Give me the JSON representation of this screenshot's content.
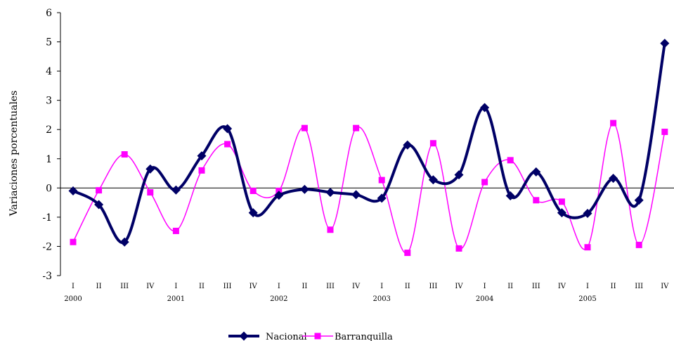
{
  "chart_data": {
    "type": "line",
    "title": "",
    "xlabel": "",
    "ylabel": "Variaciones porcentuales",
    "ylim": [
      -3,
      6
    ],
    "yticks": [
      -3,
      -2,
      -1,
      0,
      1,
      2,
      3,
      4,
      5,
      6
    ],
    "categories": [
      "I",
      "II",
      "III",
      "IV",
      "I",
      "II",
      "III",
      "IV",
      "I",
      "II",
      "III",
      "IV",
      "I",
      "II",
      "III",
      "IV",
      "I",
      "II",
      "III",
      "IV",
      "I",
      "II",
      "III",
      "IV"
    ],
    "years": [
      {
        "label": "2000",
        "start_index": 0
      },
      {
        "label": "2001",
        "start_index": 4
      },
      {
        "label": "2002",
        "start_index": 8
      },
      {
        "label": "2003",
        "start_index": 12
      },
      {
        "label": "2004",
        "start_index": 16
      },
      {
        "label": "2005",
        "start_index": 20
      }
    ],
    "series": [
      {
        "name": "Nacional",
        "color": "#000066",
        "marker": "diamond",
        "values": [
          -0.1,
          -0.57,
          -1.85,
          0.65,
          -0.07,
          1.1,
          2.03,
          -0.85,
          -0.25,
          -0.05,
          -0.15,
          -0.23,
          -0.35,
          1.47,
          0.28,
          0.45,
          2.75,
          -0.27,
          0.55,
          -0.85,
          -0.87,
          0.33,
          -0.42,
          4.95
        ]
      },
      {
        "name": "Barranquilla",
        "color": "#ff00ff",
        "marker": "square",
        "values": [
          -1.85,
          -0.08,
          1.15,
          -0.15,
          -1.47,
          0.6,
          1.5,
          -0.1,
          -0.1,
          2.05,
          -1.43,
          2.05,
          0.27,
          -2.22,
          1.53,
          -2.07,
          0.2,
          0.95,
          -0.42,
          -0.47,
          -2.03,
          2.22,
          -1.95,
          1.92
        ]
      }
    ],
    "grid": false,
    "legend_position": "bottom"
  }
}
